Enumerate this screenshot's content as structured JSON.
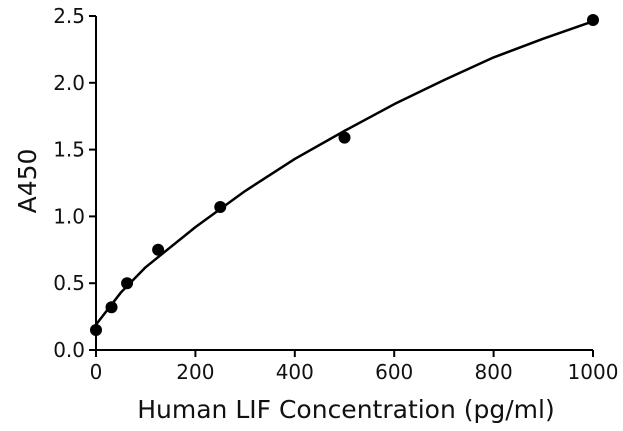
{
  "chart_data": {
    "type": "scatter",
    "title": "",
    "xlabel": "Human LIF Concentration (pg/ml)",
    "ylabel": "A450",
    "xlim": [
      0,
      1000
    ],
    "ylim": [
      0,
      2.5
    ],
    "x_ticks": [
      0,
      200,
      400,
      600,
      800,
      1000
    ],
    "x_tick_labels": [
      "0",
      "200",
      "400",
      "600",
      "800",
      "1000"
    ],
    "y_ticks": [
      0,
      0.5,
      1.0,
      1.5,
      2.0,
      2.5
    ],
    "y_tick_labels": [
      "0.0",
      "0.5",
      "1.0",
      "1.5",
      "2.0",
      "2.5"
    ],
    "grid": false,
    "legend": "none",
    "series": [
      {
        "points": [
          {
            "x": 0,
            "y": 0.15
          },
          {
            "x": 31.25,
            "y": 0.32
          },
          {
            "x": 62.5,
            "y": 0.5
          },
          {
            "x": 125,
            "y": 0.75
          },
          {
            "x": 250,
            "y": 1.07
          },
          {
            "x": 500,
            "y": 1.59
          },
          {
            "x": 1000,
            "y": 2.47
          }
        ],
        "color": "#000000"
      }
    ],
    "fit_curve": [
      {
        "x": 0,
        "y": 0.19
      },
      {
        "x": 50,
        "y": 0.43
      },
      {
        "x": 100,
        "y": 0.62
      },
      {
        "x": 200,
        "y": 0.92
      },
      {
        "x": 300,
        "y": 1.19
      },
      {
        "x": 400,
        "y": 1.43
      },
      {
        "x": 500,
        "y": 1.64
      },
      {
        "x": 600,
        "y": 1.84
      },
      {
        "x": 700,
        "y": 2.02
      },
      {
        "x": 800,
        "y": 2.19
      },
      {
        "x": 900,
        "y": 2.33
      },
      {
        "x": 1000,
        "y": 2.46
      }
    ]
  }
}
